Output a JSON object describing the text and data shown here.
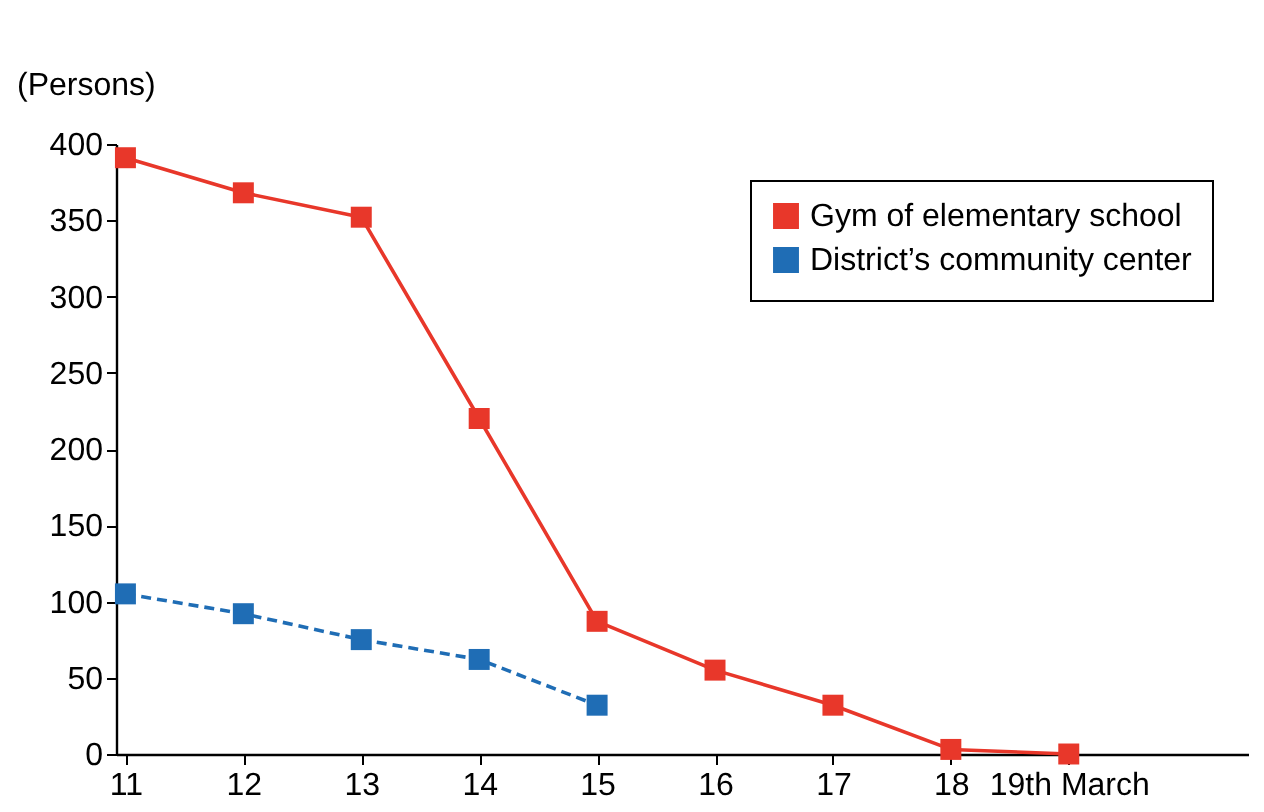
{
  "chart_data": {
    "type": "line",
    "ylabel": "(Persons)",
    "categories": [
      "11",
      "12",
      "13",
      "14",
      "15",
      "16",
      "17",
      "18",
      "19th March"
    ],
    "series": [
      {
        "name": "Gym of elementary school",
        "color": "#e8372a",
        "line_style": "solid",
        "values": [
          391,
          368,
          352,
          220,
          87,
          55,
          32,
          3,
          0
        ]
      },
      {
        "name": "District’s community center",
        "color": "#1f6db5",
        "line_style": "dashed",
        "values": [
          105,
          92,
          75,
          62,
          32,
          null,
          null,
          null,
          null
        ]
      }
    ],
    "ylim": [
      0,
      400
    ],
    "yticks": [
      0,
      50,
      100,
      150,
      200,
      250,
      300,
      350,
      400
    ],
    "marker": "square",
    "grid": false,
    "legend": "top right"
  }
}
